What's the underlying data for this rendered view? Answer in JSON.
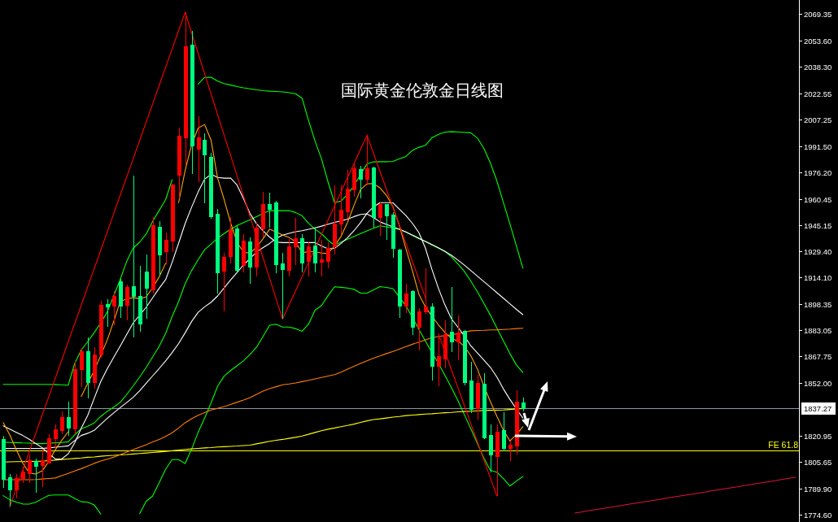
{
  "chart_data": {
    "type": "candlestick",
    "title": "国际黄金伦敦金日线图",
    "categories": [
      null,
      null,
      null,
      null,
      null,
      null,
      null,
      null,
      null,
      null,
      null,
      null,
      null,
      null,
      null,
      null,
      null,
      null,
      null,
      null,
      null,
      null,
      null,
      null,
      null,
      null,
      null,
      null,
      null,
      null,
      null,
      null,
      null,
      null,
      null,
      null,
      null,
      null,
      null,
      null,
      null,
      null,
      null,
      null,
      null,
      null,
      null,
      null,
      null,
      null,
      null,
      null,
      null,
      null,
      null,
      null,
      null,
      null,
      null,
      null,
      null,
      null,
      null,
      null,
      null,
      null,
      null,
      null,
      null,
      null,
      null,
      null,
      null,
      null,
      null,
      null,
      null,
      null,
      null,
      null,
      null,
      null,
      null,
      null,
      null,
      null,
      null,
      null,
      null,
      null,
      null,
      null,
      null,
      null,
      null,
      null,
      null,
      null,
      null,
      null,
      null,
      null,
      null,
      null,
      null,
      null,
      null,
      null,
      null,
      null,
      null,
      null,
      null,
      null,
      null,
      null,
      null,
      null,
      null,
      null,
      null,
      null,
      null
    ],
    "ohlc": [
      [
        1818.7,
        1821.1,
        1790.4,
        1795.4
      ],
      [
        1796.4,
        1798.3,
        1779.3,
        1789.4
      ],
      [
        1789.3,
        1798.3,
        1784.1,
        1795.9
      ],
      [
        1795.9,
        1803.0,
        1793.5,
        1799.8
      ],
      [
        1798.6,
        1810.1,
        1793.5,
        1806.2
      ],
      [
        1805.8,
        1807.7,
        1787.5,
        1803.0
      ],
      [
        1803.5,
        1813.4,
        1790.7,
        1806.2
      ],
      [
        1805.0,
        1821.9,
        1804.6,
        1819.2
      ],
      [
        1819.2,
        1827.6,
        1814.0,
        1824.8
      ],
      [
        1824.3,
        1835.3,
        1821.9,
        1831.9
      ],
      [
        1831.9,
        1840.9,
        1821.1,
        1825.4
      ],
      [
        1825.1,
        1864.5,
        1821.9,
        1860.2
      ],
      [
        1860.2,
        1872.9,
        1849.5,
        1870.6
      ],
      [
        1870.6,
        1878.7,
        1843.2,
        1852.2
      ],
      [
        1852.2,
        1873.2,
        1849.0,
        1868.8
      ],
      [
        1868.4,
        1900.5,
        1866.9,
        1897.6
      ],
      [
        1898.1,
        1901.5,
        1885.3,
        1896.8
      ],
      [
        1897.3,
        1906.3,
        1886.3,
        1903.3
      ],
      [
        1911.8,
        1913.4,
        1890.5,
        1897.3
      ],
      [
        1897.9,
        1909.9,
        1888.8,
        1908.5
      ],
      [
        1909.0,
        1974.1,
        1878.7,
        1903.0
      ],
      [
        1903.3,
        1920.8,
        1882.1,
        1886.9
      ],
      [
        1917.4,
        1927.9,
        1890.1,
        1907.7
      ],
      [
        1906.8,
        1949.6,
        1904.7,
        1944.5
      ],
      [
        1943.8,
        1947.3,
        1915.0,
        1927.6
      ],
      [
        1929.2,
        1940.7,
        1922.2,
        1935.9
      ],
      [
        1935.5,
        1969.5,
        1929.2,
        1968.6
      ],
      [
        1974.4,
        2002.2,
        1960.7,
        1997.4
      ],
      [
        1996.5,
        2070.2,
        1980.4,
        2050.1
      ],
      [
        2050.9,
        2059.3,
        1975.2,
        1991.4
      ],
      [
        1989.5,
        2008.8,
        1970.1,
        1996.5
      ],
      [
        1995.1,
        1998.9,
        1957.8,
        1986.2
      ],
      [
        1985.1,
        1987.5,
        1948.9,
        1950.0
      ],
      [
        1951.6,
        1954.4,
        1904.7,
        1916.9
      ],
      [
        1918.1,
        1928.8,
        1894.2,
        1926.0
      ],
      [
        1926.6,
        1949.6,
        1922.6,
        1942.1
      ],
      [
        1942.9,
        1944.9,
        1917.4,
        1918.6
      ],
      [
        1921.3,
        1939.9,
        1917.4,
        1935.5
      ],
      [
        1935.0,
        1937.8,
        1910.5,
        1920.5
      ],
      [
        1920.5,
        1946.5,
        1914.6,
        1943.4
      ],
      [
        1943.0,
        1964.6,
        1937.8,
        1957.2
      ],
      [
        1957.2,
        1963.9,
        1943.4,
        1954.4
      ],
      [
        1958.3,
        1959.1,
        1916.5,
        1921.9
      ],
      [
        1922.2,
        1928.8,
        1889.7,
        1918.8
      ],
      [
        1918.6,
        1937.0,
        1915.0,
        1932.3
      ],
      [
        1932.3,
        1949.2,
        1921.3,
        1937.0
      ],
      [
        1937.0,
        1939.9,
        1917.4,
        1922.8
      ],
      [
        1923.5,
        1934.7,
        1915.0,
        1932.3
      ],
      [
        1932.6,
        1944.1,
        1917.4,
        1922.6
      ],
      [
        1923.2,
        1936.3,
        1914.6,
        1924.7
      ],
      [
        1923.6,
        1934.7,
        1919.4,
        1931.1
      ],
      [
        1932.3,
        1968.6,
        1927.6,
        1945.7
      ],
      [
        1945.7,
        1968.6,
        1939.4,
        1953.6
      ],
      [
        1952.8,
        1977.6,
        1948.9,
        1966.2
      ],
      [
        1965.7,
        1981.2,
        1961.8,
        1978.1
      ],
      [
        1977.6,
        1980.0,
        1960.7,
        1971.8
      ],
      [
        1972.0,
        1997.8,
        1968.6,
        1978.4
      ],
      [
        1978.5,
        1979.6,
        1943.4,
        1949.7
      ],
      [
        1949.3,
        1958.3,
        1938.6,
        1957.2
      ],
      [
        1957.2,
        1957.6,
        1936.3,
        1950.5
      ],
      [
        1950.9,
        1952.8,
        1926.0,
        1931.1
      ],
      [
        1930.1,
        1931.2,
        1890.5,
        1897.1
      ],
      [
        1897.1,
        1910.5,
        1893.2,
        1904.7
      ],
      [
        1905.8,
        1906.8,
        1880.3,
        1885.0
      ],
      [
        1885.0,
        1896.1,
        1871.1,
        1894.0
      ],
      [
        1894.2,
        1919.7,
        1892.9,
        1896.8
      ],
      [
        1896.8,
        1899.2,
        1853.5,
        1861.7
      ],
      [
        1862.1,
        1880.3,
        1850.3,
        1867.7
      ],
      [
        1866.4,
        1889.0,
        1860.6,
        1880.6
      ],
      [
        1881.9,
        1908.6,
        1870.5,
        1876.2
      ],
      [
        1876.2,
        1891.9,
        1865.3,
        1881.4
      ],
      [
        1882.6,
        1883.4,
        1850.6,
        1852.2
      ],
      [
        1853.2,
        1864.5,
        1834.6,
        1836.6
      ],
      [
        1837.2,
        1857.0,
        1830.6,
        1851.9
      ],
      [
        1851.4,
        1857.7,
        1819.1,
        1820.0
      ],
      [
        1821.4,
        1827.5,
        1799.4,
        1809.8
      ],
      [
        1809.0,
        1827.5,
        1785.6,
        1823.0
      ],
      [
        1823.9,
        1834.8,
        1811.7,
        1813.6
      ],
      [
        1813.6,
        1818.0,
        1806.2,
        1815.4
      ],
      [
        1814.8,
        1847.9,
        1809.8,
        1840.9
      ],
      [
        1840.4,
        1843.7,
        1835.3,
        1837.27
      ],
      null,
      null,
      null,
      null,
      null,
      null,
      null,
      null,
      null,
      null,
      null,
      null,
      null,
      null,
      null,
      null,
      null,
      null,
      null,
      null,
      null,
      null,
      null,
      null,
      null,
      null,
      null,
      null,
      null,
      null,
      null,
      null,
      null,
      null,
      null,
      null,
      null,
      null,
      null,
      null,
      null,
      null
    ],
    "colors": [
      "#00ff7f",
      "#00ff7f",
      "#ff0000",
      "#ff0000",
      "#ff0000",
      "#00ff7f",
      "#ff0000",
      "#ff0000",
      "#ff0000",
      "#ff0000",
      "#00ff7f",
      "#ff0000",
      "#ff0000",
      "#00ff7f",
      "#ff0000",
      "#ff0000",
      "#00ff7f",
      "#ff0000",
      "#00ff7f",
      "#ff0000",
      "#00ff7f",
      "#00ff7f",
      "#00ff7f",
      "#ff0000",
      "#00ff7f",
      "#ff0000",
      "#ff0000",
      "#ff0000",
      "#ff0000",
      "#00ff7f",
      "#ff0000",
      "#00ff7f",
      "#00ff7f",
      "#00ff7f",
      "#ff0000",
      "#ff0000",
      "#00ff7f",
      "#ff0000",
      "#00ff7f",
      "#ff0000",
      "#ff0000",
      "#00ff7f",
      "#00ff7f",
      "#00ff7f",
      "#ff0000",
      "#ff0000",
      "#00ff7f",
      "#ff0000",
      "#00ff7f",
      "#ff0000",
      "#ff0000",
      "#ff0000",
      "#ff0000",
      "#ff0000",
      "#ff0000",
      "#00ff7f",
      "#ff0000",
      "#00ff7f",
      "#ff0000",
      "#00ff7f",
      "#00ff7f",
      "#00ff7f",
      "#ff0000",
      "#00ff7f",
      "#ff0000",
      "#ff0000",
      "#00ff7f",
      "#ff0000",
      "#ff0000",
      "#00ff7f",
      "#ff0000",
      "#00ff7f",
      "#00ff7f",
      "#ff0000",
      "#00ff7f",
      "#00ff7f",
      "#ff0000",
      "#00ff7f",
      "#ff0000",
      "#ff0000",
      "#00ff7f",
      null,
      null,
      null,
      null,
      null,
      null,
      null,
      null,
      null,
      null,
      null,
      null,
      null,
      null,
      null,
      null,
      null,
      null,
      null,
      null,
      null,
      null,
      null,
      null,
      null,
      null,
      null,
      null,
      null,
      null,
      null,
      null,
      null,
      null,
      null,
      null,
      null,
      null,
      null,
      null,
      null,
      null
    ],
    "series": [
      {
        "type": "line",
        "color": "#00ff00",
        "values": [
          1851.3,
          1851.3,
          1851.3,
          1851.3,
          1851.3,
          1851.3,
          1851.3,
          1851.3,
          1851.2,
          1851.0,
          1850.8,
          1863.6,
          1871.5,
          1876.4,
          1881.7,
          1887.4,
          1893.8,
          1903.3,
          1913.0,
          1923.6,
          1931.4,
          1935.0,
          1939.7,
          1947.2,
          1953.6,
          1960.0,
          1971.7,
          null,
          null,
          null,
          2028.0,
          2031.9,
          2032.0,
          2029.7,
          2028.3,
          2027.4,
          2026.5,
          2025.8,
          2025.2,
          2024.6,
          2024.1,
          2023.8,
          2023.6,
          2023.4,
          2022.9,
          2022.3,
          2019.7,
          2006.6,
          1994.4,
          1984.0,
          1970.4,
          1958.2,
          1959.1,
          1963.2,
          1968.1,
          1974.8,
          1981.0,
          1982.2,
          1982.3,
          1982.3,
          1982.5,
          1984.0,
          1985.4,
          1989.0,
          1990.8,
          1991.9,
          1996.4,
          1998.4,
          1999.7,
          2000.0,
          1999.8,
          1999.6,
          1999.3,
          1996.2,
          1990.1,
          1981.5,
          1971.0,
          1958.3,
          1945.7,
          1932.8,
          1919.6,
          null,
          null,
          null,
          null,
          null,
          null,
          null,
          null,
          null,
          null,
          null,
          null,
          null,
          null,
          null,
          null,
          null,
          null,
          null,
          null,
          null,
          null,
          null,
          null,
          null,
          null,
          null,
          null,
          null,
          null,
          null,
          null,
          null,
          null,
          null,
          null,
          null,
          null,
          null,
          null,
          null,
          null
        ]
      },
      {
        "type": "line",
        "color": "#00ff00",
        "values": [
          1817.3,
          1817.1,
          1817.0,
          1816.8,
          1816.7,
          1816.5,
          1816.4,
          1816.7,
          1816.9,
          1817.1,
          1817.5,
          1821.6,
          1825.1,
          1826.6,
          1828.6,
          1832.4,
          1835.4,
          1837.9,
          1840.7,
          1845.3,
          1850.3,
          1855.6,
          1861.2,
          1867.4,
          1873.6,
          1881.3,
          1891.2,
          1900.1,
          1910.5,
          1918.2,
          1924.6,
          1930.5,
          1933.9,
          1937.3,
          1940.0,
          1942.5,
          1944.8,
          1946.5,
          1948.2,
          1950.0,
          1951.9,
          1953.5,
          1953.5,
          1953.5,
          1953.5,
          1952.4,
          1950.5,
          1946.1,
          1942.6,
          1939.9,
          1936.1,
          1933.1,
          1935.0,
          1936.7,
          1938.4,
          1940.0,
          1941.6,
          1943.1,
          1944.6,
          1944.0,
          1943.4,
          1942.4,
          1940.9,
          1939.2,
          1937.4,
          1935.4,
          1933.3,
          1931.4,
          1929.6,
          1926.3,
          1922.1,
          1917.7,
          1911.9,
          1905.8,
          1898.9,
          1892.0,
          1884.4,
          1876.9,
          1869.4,
          1862.7,
          1858.3,
          null,
          null,
          null,
          null,
          null,
          null,
          null,
          null,
          null,
          null,
          null,
          null,
          null,
          null,
          null,
          null,
          null,
          null,
          null,
          null,
          null,
          null,
          null,
          null,
          null,
          null,
          null,
          null,
          null,
          null,
          null,
          null,
          null,
          null,
          null,
          null,
          null,
          null,
          null,
          null,
          null,
          null
        ]
      },
      {
        "type": "line",
        "color": "#00ff00",
        "values": [
          1785.8,
          1783.4,
          1782.0,
          1780.9,
          1780.8,
          1781.9,
          1784.0,
          1786.0,
          1786.2,
          1786.2,
          1786.2,
          1784.2,
          1782.2,
          1782.0,
          1780.4,
          1775.0,
          null,
          null,
          null,
          null,
          null,
          1775.2,
          1782.5,
          1785.6,
          1793.4,
          1801.4,
          1807.0,
          1807.0,
          1804.7,
          1813.2,
          1823.0,
          1831.4,
          1840.4,
          1850.2,
          1856.1,
          1859.4,
          1862.3,
          1865.2,
          1868.9,
          1873.2,
          1879.5,
          1886.1,
          1886.7,
          1885.0,
          1885.0,
          1884.1,
          1882.5,
          1886.7,
          1894.9,
          1897.7,
          1903.5,
          1908.7,
          1908.4,
          1908.0,
          1907.2,
          1905.0,
          1905.0,
          1906.9,
          1908.8,
          1908.3,
          1907.6,
          1902.5,
          1897.4,
          1890.6,
          1883.6,
          1876.7,
          1870.0,
          1863.6,
          1856.5,
          1849.4,
          1841.7,
          1833.4,
          1825.1,
          1816.5,
          1807.9,
          1800.7,
          1799.6,
          1795.8,
          1791.5,
          1794.4,
          1797.1,
          null,
          null,
          null,
          null,
          null,
          null,
          null,
          null,
          null,
          null,
          null,
          null,
          null,
          null,
          null,
          null,
          null,
          null,
          null,
          null,
          null,
          null,
          null,
          null,
          null,
          null,
          null,
          null,
          null,
          null,
          null,
          null,
          null,
          null,
          null,
          null,
          null,
          null,
          null,
          null,
          null,
          null
        ]
      },
      {
        "type": "line",
        "color": "#ffff00",
        "values": [
          1805.6,
          1805.7,
          1805.8,
          1805.8,
          1805.9,
          1806.0,
          1806.1,
          1806.4,
          1806.7,
          1807.1,
          1807.4,
          1807.7,
          1808.0,
          1808.4,
          1808.6,
          1809.0,
          1809.3,
          1809.5,
          1809.8,
          1810.0,
          1810.3,
          1810.6,
          1810.9,
          1811.2,
          1811.5,
          1811.8,
          1812.2,
          1812.6,
          1813.0,
          1813.3,
          1813.6,
          1813.9,
          1814.1,
          1814.4,
          1814.6,
          1814.8,
          1815.0,
          1815.3,
          1815.5,
          1816.3,
          1817.0,
          1817.8,
          1818.4,
          1818.9,
          1819.5,
          1820.1,
          1820.9,
          1821.9,
          1823.0,
          1824.0,
          1824.9,
          1825.6,
          1826.4,
          1827.1,
          1827.9,
          1828.9,
          1829.8,
          1830.6,
          1831.0,
          1831.5,
          1832.0,
          1832.4,
          1832.9,
          1833.2,
          1833.5,
          1833.8,
          1834.0,
          1834.3,
          1834.6,
          1834.8,
          1835.1,
          1835.3,
          1835.5,
          1835.7,
          1835.9,
          1836.0,
          1836.1,
          1836.2,
          1836.5,
          1836.8,
          1837.1,
          null,
          null,
          null,
          null,
          null,
          null,
          null,
          null,
          null,
          null,
          null,
          null,
          null,
          null,
          null,
          null,
          null,
          null,
          null,
          null,
          null,
          null,
          null,
          null,
          null,
          null,
          null,
          null,
          null,
          null,
          null,
          null,
          null,
          null,
          null,
          null,
          null,
          null,
          null,
          null,
          null,
          null
        ]
      },
      {
        "type": "line",
        "color": "#ff8000",
        "values": [
          1795.2,
          1795.2,
          1795.2,
          1795.2,
          1795.2,
          1795.3,
          1795.6,
          1795.9,
          1796.2,
          1797.6,
          1798.9,
          1800.3,
          1801.7,
          1803.2,
          1804.8,
          1806.2,
          1807.3,
          1808.4,
          1809.9,
          1811.4,
          1812.9,
          1814.3,
          1815.8,
          1817.4,
          1818.9,
          1820.7,
          1822.8,
          1825.6,
          1828.7,
          1831.1,
          1833.1,
          1834.7,
          1836.2,
          1837.2,
          1838.2,
          1839.4,
          1840.8,
          1842.1,
          1843.5,
          1845.4,
          1847.3,
          1848.8,
          1849.9,
          1851.0,
          1851.5,
          1852.1,
          1852.9,
          1853.7,
          1854.5,
          1855.3,
          1856.2,
          1857.0,
          1858.5,
          1860.2,
          1861.9,
          1863.6,
          1865.2,
          1866.7,
          1868.0,
          1869.4,
          1870.7,
          1872.1,
          1873.5,
          1874.9,
          1876.2,
          1877.5,
          1878.8,
          1879.5,
          1879.9,
          1880.4,
          1881.2,
          1882.0,
          1882.8,
          1883.0,
          1883.1,
          1883.3,
          1883.4,
          1883.6,
          1883.8,
          1884.1,
          1884.3,
          null,
          null,
          null,
          null,
          null,
          null,
          null,
          null,
          null,
          null,
          null,
          null,
          null,
          null,
          null,
          null,
          null,
          null,
          null,
          null,
          null,
          null,
          null,
          null,
          null,
          null,
          null,
          null,
          null,
          null,
          null,
          null,
          null,
          null,
          null,
          null,
          null,
          null,
          null,
          null,
          null,
          null
        ]
      },
      {
        "type": "line",
        "color": "#ffffff",
        "values": [
          1813.6,
          1813.6,
          1813.6,
          1813.6,
          1813.6,
          1813.6,
          1813.6,
          1813.9,
          1814.3,
          1814.7,
          1815.1,
          1818.2,
          1821.2,
          1822.5,
          1824.2,
          1827.8,
          1831.2,
          1834.5,
          1837.6,
          1840.6,
          1843.7,
          1847.5,
          1851.9,
          1856.3,
          1860.6,
          1865.1,
          1870.0,
          1875.3,
          1881.6,
          1888.3,
          1893.7,
          1896.9,
          1899.6,
          1903.3,
          1908.0,
          1912.7,
          1917.1,
          1921.6,
          1925.4,
          1929.2,
          1931.8,
          1934.2,
          1937.1,
          1939.1,
          1940.1,
          1941.1,
          1941.7,
          1942.5,
          1943.4,
          1944.4,
          1945.5,
          1946.6,
          1947.5,
          1948.5,
          1950.0,
          1951.3,
          1951.6,
          1949.5,
          1946.9,
          1945.4,
          1944.0,
          1942.5,
          1941.0,
          1939.0,
          1937.0,
          1935.4,
          1933.6,
          1931.6,
          1929.5,
          1927.2,
          1924.4,
          1921.4,
          1918.2,
          1915.0,
          1911.7,
          1908.5,
          1905.2,
          1902.0,
          1898.7,
          1895.4,
          1892.3,
          null,
          null,
          null,
          null,
          null,
          null,
          null,
          null,
          null,
          null,
          null,
          null,
          null,
          null,
          null,
          null,
          null,
          null,
          null,
          null,
          null,
          null,
          null,
          null,
          null,
          null,
          null,
          null,
          null,
          null,
          null,
          null,
          null,
          null,
          null,
          null,
          null,
          null,
          null,
          null,
          null,
          null
        ]
      },
      {
        "type": "line",
        "color": "#ffffff",
        "values": [
          1826.9,
          1825.0,
          1823.1,
          1821.2,
          1819.0,
          1816.5,
          1814.0,
          1810.6,
          1807.4,
          1807.4,
          1810.4,
          1816.8,
          1825.4,
          1833.0,
          1843.1,
          1852.8,
          1860.4,
          1867.2,
          1873.8,
          1880.6,
          1887.4,
          1892.0,
          1896.6,
          1902.2,
          1907.8,
          1912.9,
          1923.1,
          1934.4,
          1945.9,
          1955.5,
          1964.5,
          1972.0,
          1974.9,
          1973.0,
          1972.6,
          1972.7,
          1968.5,
          1960.5,
          1951.7,
          1945.8,
          1941.6,
          1938.0,
          1935.0,
          1934.7,
          1934.7,
          1934.7,
          1934.7,
          1934.7,
          1934.7,
          1932.7,
          1931.1,
          1931.3,
          1934.2,
          1937.6,
          1941.7,
          1946.4,
          1951.9,
          1955.7,
          1958.2,
          1958.2,
          1958.1,
          1954.3,
          1950.6,
          1946.0,
          1940.5,
          1931.4,
          1918.9,
          1907.8,
          1898.0,
          1889.9,
          1884.9,
          1879.7,
          1873.9,
          1869.7,
          1865.6,
          1861.3,
          1855.6,
          1848.6,
          1842.5,
          1836.8,
          1831.5,
          null,
          null,
          null,
          null,
          null,
          null,
          null,
          null,
          null,
          null,
          null,
          null,
          null,
          null,
          null,
          null,
          null,
          null,
          null,
          null,
          null,
          null,
          null,
          null,
          null,
          null,
          null,
          null,
          null,
          null,
          null,
          null,
          null,
          null,
          null,
          null,
          null,
          null,
          null,
          null,
          null,
          null
        ]
      },
      {
        "type": "line",
        "color": "#ffa500",
        "values": [
          1828.8,
          1821.6,
          1812.9,
          1805.0,
          1799.2,
          1798.5,
          1800.4,
          1805.9,
          1812.7,
          1818.3,
          1823.4,
          null,
          1844.1,
          1851.9,
          1859.4,
          1868.2,
          1877.3,
          1888.3,
          1899.9,
          1901.6,
          1902.3,
          1901.7,
          1902.7,
          1908.1,
          1914.5,
          1922.5,
          null,
          1958.2,
          1977.0,
          1992.3,
          2002.1,
          2004.2,
          1994.9,
          1972.6,
          1960.1,
          1946.4,
          1934.9,
          1928.9,
          1928.6,
          1932.0,
          1937.0,
          1942.6,
          1941.0,
          1939.2,
          1937.7,
          1935.2,
          1928.7,
          1929.4,
          1929.4,
          1928.5,
          1928.3,
          1932.8,
          1938.3,
          1946.6,
          1956.6,
          1965.9,
          1969.3,
          1969.4,
          1966.9,
          1962.5,
          1955.7,
          1944.5,
          1931.0,
          1918.1,
          1904.2,
          1896.8,
          1891.4,
          1886.3,
          1881.8,
          1878.2,
          1876.9,
          1873.6,
          1868.0,
          1860.3,
          1850.2,
          1841.1,
          1832.5,
          1824.4,
          1818.0,
          1821.8,
          1826.3,
          null,
          null,
          null,
          null,
          null,
          null,
          null,
          null,
          null,
          null,
          null,
          null,
          null,
          null,
          null,
          null,
          null,
          null,
          null,
          null,
          null,
          null,
          null,
          null,
          null,
          null,
          null,
          null,
          null,
          null,
          null,
          null,
          null,
          null,
          null,
          null,
          null,
          null,
          null,
          null,
          null,
          null
        ]
      },
      {
        "type": "line",
        "color": "#ff0000",
        "values": [
          null,
          1779.3,
          1790.1,
          1800.8,
          1811.6,
          1822.4,
          1833.2,
          1843.9,
          1854.7,
          1865.5,
          1876.3,
          1887.0,
          1897.8,
          1908.6,
          1919.4,
          1930.1,
          1940.9,
          1951.7,
          1962.5,
          1973.2,
          1984.0,
          1994.8,
          2005.6,
          2016.3,
          2027.1,
          2037.9,
          2048.7,
          2059.4,
          2070.2,
          2058.2,
          2046.1,
          2034.1,
          2022.1,
          2010.0,
          1998.0,
          1986.0,
          1973.9,
          1961.9,
          1949.9,
          1937.8,
          1925.8,
          1913.8,
          1901.7,
          1889.7,
          1898.0,
          1906.3,
          1914.6,
          1923.0,
          1931.3,
          1939.6,
          1947.9,
          1956.2,
          1964.5,
          1972.9,
          1981.2,
          1989.5,
          1997.8,
          1987.2,
          1976.6,
          1966.0,
          1955.4,
          1944.8,
          1934.1,
          1923.5,
          1912.9,
          1902.3,
          null,
          1881.1,
          1870.5,
          1859.9,
          1849.3,
          1838.7,
          1828.0,
          1817.4,
          1806.8,
          1796.2,
          1785.6,
          null,
          null,
          null,
          null,
          null,
          null,
          null,
          null,
          null,
          null,
          null,
          null,
          null,
          null,
          null,
          null,
          null,
          null,
          null,
          null,
          null,
          null,
          null,
          null,
          null,
          null,
          null,
          null,
          null,
          null,
          null,
          null,
          null,
          null,
          null,
          null,
          null,
          null,
          null,
          null,
          null,
          null,
          null,
          null,
          null,
          null
        ]
      },
      {
        "type": "line",
        "color": "#dc143c",
        "values": [
          null,
          null,
          null,
          null,
          null,
          null,
          null,
          null,
          null,
          null,
          null,
          null,
          null,
          null,
          null,
          null,
          null,
          null,
          null,
          null,
          null,
          null,
          null,
          null,
          null,
          null,
          null,
          null,
          null,
          null,
          null,
          null,
          null,
          null,
          null,
          null,
          null,
          null,
          null,
          null,
          null,
          null,
          null,
          null,
          null,
          null,
          null,
          null,
          null,
          null,
          null,
          null,
          null,
          null,
          null,
          null,
          null,
          null,
          null,
          null,
          null,
          null,
          null,
          null,
          null,
          null,
          null,
          null,
          null,
          null,
          null,
          null,
          null,
          null,
          null,
          null,
          null,
          null,
          null,
          null,
          null,
          null,
          null,
          null,
          null,
          null,
          null,
          null,
          1775.6,
          1776.2,
          1776.9,
          1777.5,
          1778.1,
          1778.7,
          1779.3,
          1779.9,
          1780.6,
          1781.2,
          1781.8,
          1782.4,
          1783.0,
          1783.6,
          1784.3,
          1784.9,
          1785.5,
          1786.1,
          1786.7,
          1787.3,
          1787.9,
          1788.6,
          1789.2,
          1789.8,
          1790.4,
          1791.0,
          1791.7,
          1792.3,
          1792.9,
          1793.5,
          1794.1,
          1794.7,
          1795.4,
          1796.0,
          1796.6
        ]
      }
    ],
    "ylim": [
      1770.3,
      2077.45
    ],
    "yticks": [
      {
        "value": 2069.35,
        "label": "2069.35"
      },
      {
        "value": 2053.6,
        "label": "2053.60"
      },
      {
        "value": 2038.3,
        "label": "2038.30"
      },
      {
        "value": 2022.55,
        "label": "2022.55"
      },
      {
        "value": 2007.25,
        "label": "2007.25"
      },
      {
        "value": 1991.5,
        "label": "1991.50"
      },
      {
        "value": 1976.2,
        "label": "1976.20"
      },
      {
        "value": 1960.45,
        "label": "1960.45"
      },
      {
        "value": 1945.15,
        "label": "1945.15"
      },
      {
        "value": 1929.4,
        "label": "1929.40"
      },
      {
        "value": 1914.1,
        "label": "1914.10"
      },
      {
        "value": 1898.35,
        "label": "1898.35"
      },
      {
        "value": 1883.05,
        "label": "1883.05"
      },
      {
        "value": 1867.75,
        "label": "1867.75"
      },
      {
        "value": 1852.0,
        "label": "1852.00"
      },
      {
        "value": 1820.95,
        "label": "1820.95"
      },
      {
        "value": 1805.65,
        "label": "1805.65"
      },
      {
        "value": 1789.9,
        "label": "1789.90"
      },
      {
        "value": 1774.6,
        "label": "1774.60"
      }
    ],
    "ref_lines": [
      {
        "axis": "y",
        "value": 1837.27,
        "label": "1837.27",
        "color": "#8c96a0"
      },
      {
        "axis": "y",
        "value": 1812.6,
        "color": "#ffff00"
      }
    ],
    "annotations": [
      {
        "text": "FE 61.8",
        "y": 1812.6
      }
    ]
  }
}
